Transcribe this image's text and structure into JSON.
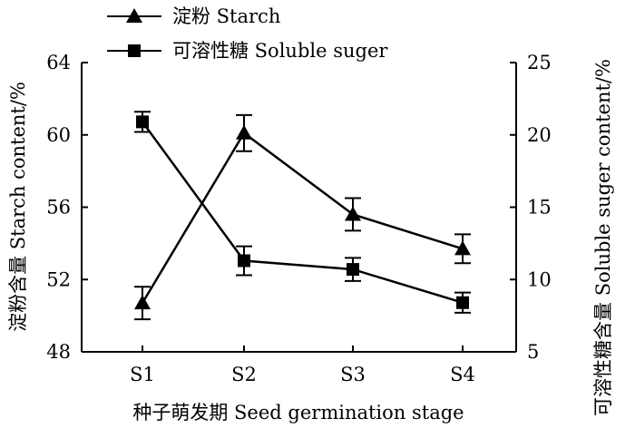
{
  "chart_data": {
    "type": "line",
    "x_title": "种子萌发期 Seed germination stage",
    "y_left_title": "淀粉含量 Starch content/%",
    "y_right_title": "可溶性糖含量 Soluble suger content/%",
    "categories": [
      "S1",
      "S2",
      "S3",
      "S4"
    ],
    "y_left": {
      "min": 48,
      "max": 64,
      "ticks": [
        "48",
        "52",
        "56",
        "60",
        "64"
      ]
    },
    "y_right": {
      "min": 5,
      "max": 25,
      "ticks": [
        "5",
        "10",
        "15",
        "20",
        "25"
      ]
    },
    "grid": false,
    "legend_position": "top-left",
    "series": [
      {
        "name": "淀粉 Starch",
        "axis": "left",
        "marker": "triangle",
        "values": [
          50.7,
          60.1,
          55.6,
          53.7
        ],
        "errors": [
          0.9,
          1.0,
          0.9,
          0.8
        ]
      },
      {
        "name": "可溶性糖 Soluble suger",
        "axis": "right",
        "marker": "square",
        "values": [
          20.9,
          11.3,
          10.7,
          8.4
        ],
        "errors": [
          0.7,
          1.0,
          0.8,
          0.7
        ]
      }
    ]
  }
}
